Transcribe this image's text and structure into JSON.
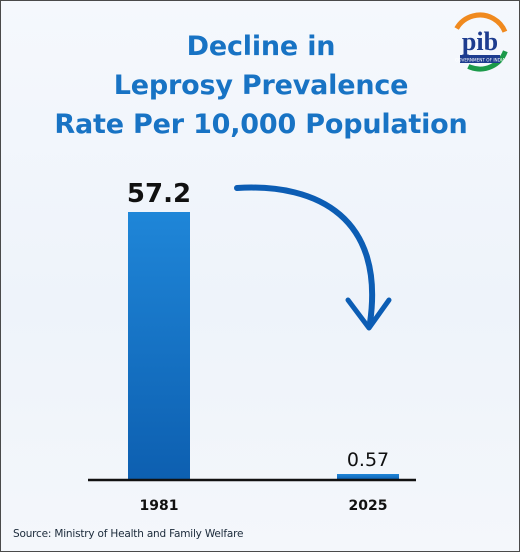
{
  "title_lines": [
    "Decline in",
    "Leprosy Prevalence",
    "Rate Per 10,000 Population"
  ],
  "logo": {
    "text": "pib",
    "subtext": "GOVERNMENT OF INDIA",
    "colors": [
      "#f08a1f",
      "#1b9a4a",
      "#1d3c8f"
    ]
  },
  "source": "Source: Ministry of Health and Family Welfare",
  "colors": {
    "title": "#1873c4",
    "bar_top": "#1f86d8",
    "bar_bottom": "#0d5fb0",
    "arrow": "#0c5db4",
    "axis": "#111111"
  },
  "chart_data": {
    "type": "bar",
    "title": "Decline in Leprosy Prevalence Rate Per 10,000 Population",
    "categories": [
      "1981",
      "2025"
    ],
    "values": [
      57.2,
      0.57
    ],
    "data_labels": [
      "57.2",
      "0.57"
    ],
    "xlabel": "",
    "ylabel": "",
    "ylim": [
      0,
      57.2
    ],
    "grid": false,
    "legend": "none",
    "annotation": "curved arrow from 1981 bar pointing down toward 2025 bar"
  }
}
